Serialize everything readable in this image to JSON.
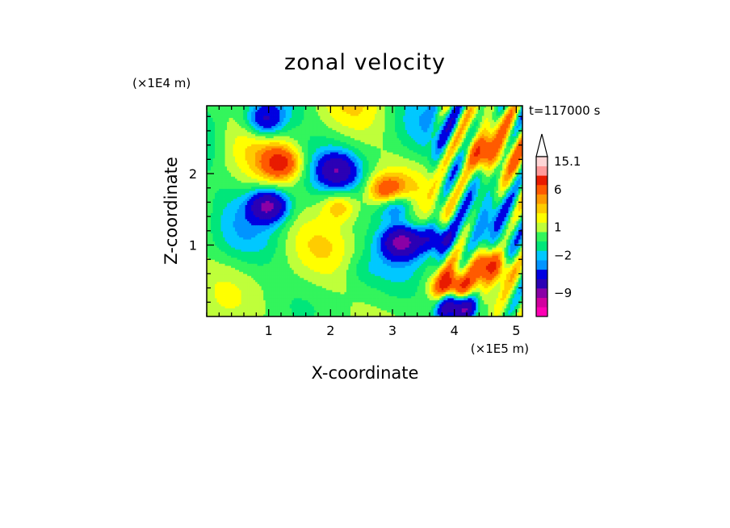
{
  "chart_data": {
    "type": "heatmap",
    "title": "zonal velocity",
    "xlabel": "X-coordinate",
    "ylabel": "Z-coordinate",
    "x_unit_label": "(×1E5 m)",
    "y_unit_label": "(×1E4 m)",
    "time_label": "t=117000 s",
    "xlim": [
      0,
      5.1
    ],
    "ylim": [
      0,
      2.95
    ],
    "x_ticks": [
      1,
      2,
      3,
      4,
      5
    ],
    "y_ticks": [
      1,
      2
    ],
    "grid": false,
    "colorbar": {
      "placement": "right",
      "labels": [
        {
          "text": "15.1",
          "level": 15.1
        },
        {
          "text": "6",
          "level": 6
        },
        {
          "text": "1",
          "level": 1
        },
        {
          "text": "−2",
          "level": -2
        },
        {
          "text": "−9",
          "level": -9
        }
      ],
      "levels": [
        -15,
        -12,
        -9,
        -6,
        -4,
        -3,
        -2,
        -1,
        0,
        1,
        2,
        3,
        4,
        6,
        9,
        12,
        15.1
      ],
      "colors": [
        "#ff00b4",
        "#d2009f",
        "#8a00a6",
        "#2b00b5",
        "#0000e1",
        "#0094ff",
        "#00c8ff",
        "#00e67a",
        "#33f55c",
        "#bfff3a",
        "#ffff00",
        "#ffcc00",
        "#ff9900",
        "#ff5a00",
        "#e81b00",
        "#ff9a9a",
        "#ffd6d6"
      ]
    },
    "features": [
      {
        "x": 1.0,
        "z": 1.55,
        "value": -9
      },
      {
        "x": 0.95,
        "z": 2.75,
        "value": -6
      },
      {
        "x": 2.1,
        "z": 2.05,
        "value": -6
      },
      {
        "x": 2.15,
        "z": 1.55,
        "value": 4
      },
      {
        "x": 1.2,
        "z": 2.15,
        "value": 6
      },
      {
        "x": 2.9,
        "z": 1.75,
        "value": 6
      },
      {
        "x": 3.05,
        "z": 1.55,
        "value": -6
      },
      {
        "x": 3.15,
        "z": 1.05,
        "value": -9
      },
      {
        "x": 3.95,
        "z": 0.4,
        "value": 9
      },
      {
        "x": 4.05,
        "z": 0.15,
        "value": -12
      },
      {
        "x": 3.7,
        "z": 1.1,
        "value": -6
      },
      {
        "x": 4.4,
        "z": 2.3,
        "value": 4
      },
      {
        "x": 4.6,
        "z": 0.7,
        "value": 6
      },
      {
        "x": 0.8,
        "z": 0.55,
        "value": 0
      },
      {
        "x": 2.5,
        "z": 0.65,
        "value": -1
      }
    ]
  }
}
